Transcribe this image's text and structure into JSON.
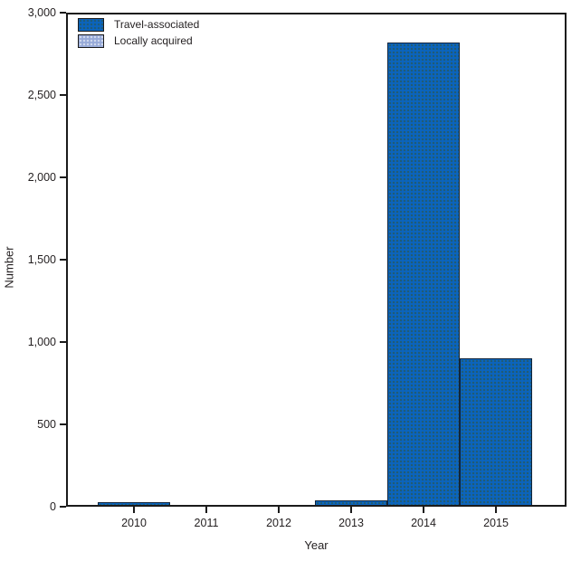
{
  "chart_data": {
    "type": "bar",
    "title": "",
    "xlabel": "Year",
    "ylabel": "Number",
    "categories": [
      "2010",
      "2011",
      "2012",
      "2013",
      "2014",
      "2015"
    ],
    "series": [
      {
        "name": "Travel-associated",
        "color": "#0b64be",
        "values": [
          30,
          0,
          0,
          40,
          2820,
          900
        ]
      },
      {
        "name": "Locally acquired",
        "color": "#97aad8",
        "values": [
          0,
          0,
          0,
          0,
          0,
          0
        ]
      }
    ],
    "ylim": [
      0,
      3000
    ],
    "ytick_values": [
      0,
      500,
      1000,
      1500,
      2000,
      2500,
      3000
    ],
    "ytick_labels": [
      "0",
      "500",
      "1,000",
      "1,500",
      "2,000",
      "2,500",
      "3,000"
    ],
    "grid": false,
    "legend_position": "top-left",
    "plot_frame": "full-rectangle"
  },
  "colors": {
    "axis": "#1b1b1b",
    "text": "#231f20",
    "background": "#ffffff",
    "travel_associated": "#0b64be",
    "locally_acquired": "#97aad8"
  }
}
